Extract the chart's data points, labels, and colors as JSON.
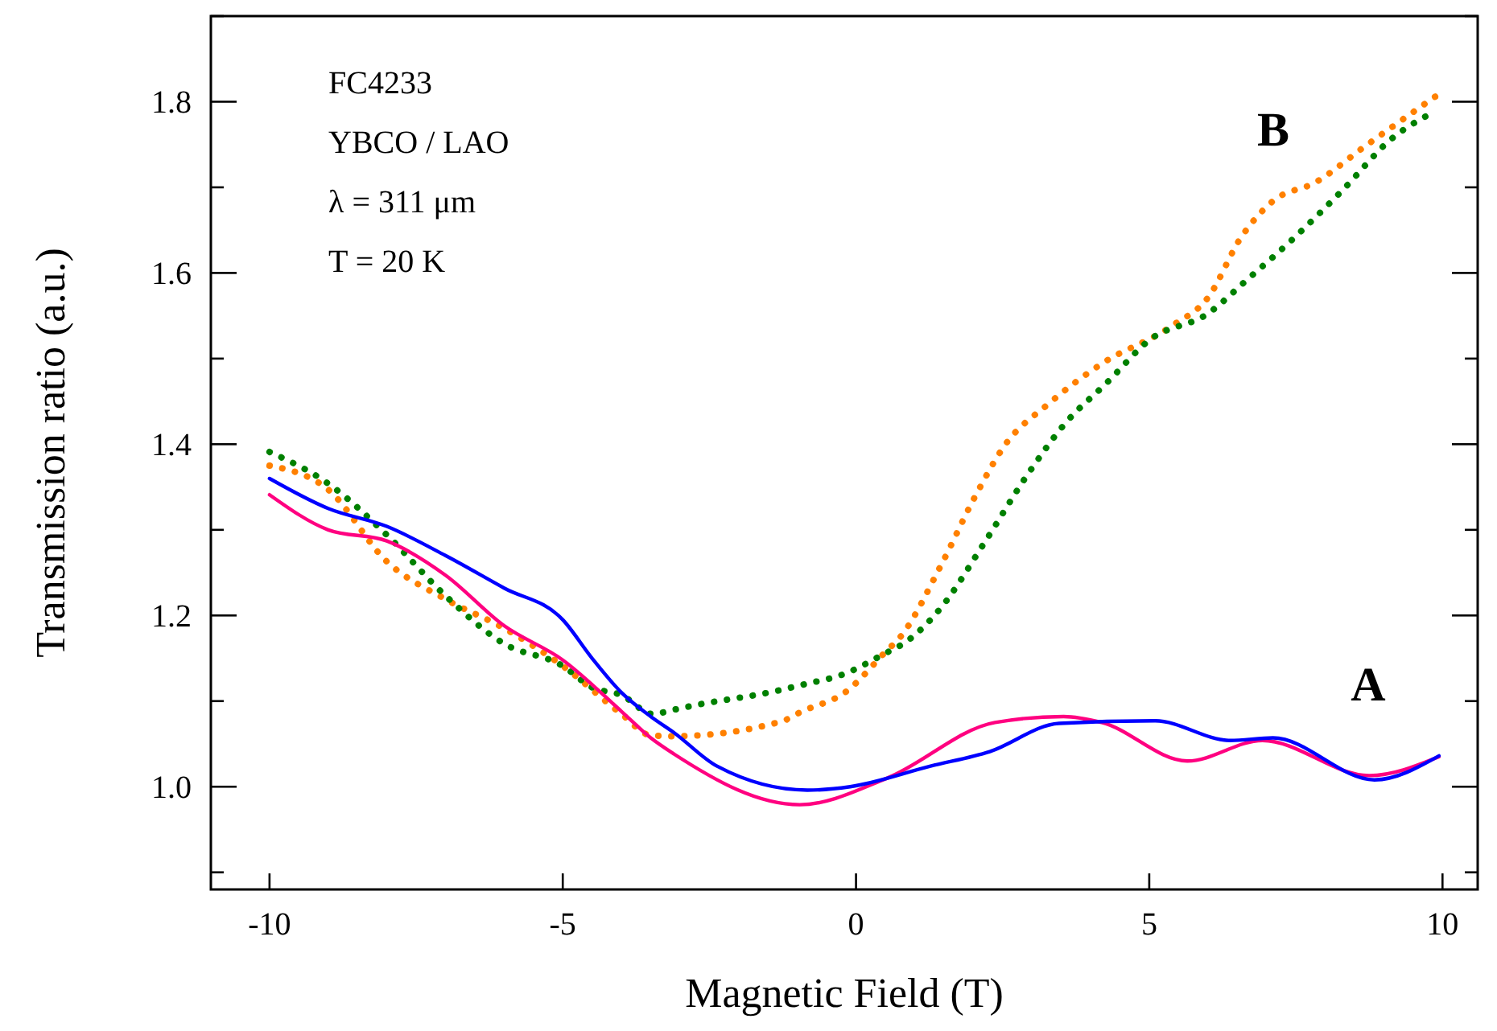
{
  "chart_data": {
    "type": "line",
    "xlabel": "Magnetic Field (T)",
    "ylabel": "Transmission ratio (a.u.)",
    "xlim": [
      -11,
      10.6
    ],
    "xticks": [
      -10,
      -5,
      0,
      5,
      10
    ],
    "ylim": [
      0.88,
      1.9
    ],
    "yticks": [
      {
        "value": 0.9,
        "label": null
      },
      {
        "value": 1.0,
        "label": "1.0"
      },
      {
        "value": 1.1,
        "label": null
      },
      {
        "value": 1.2,
        "label": "1.2"
      },
      {
        "value": 1.3,
        "label": null
      },
      {
        "value": 1.4,
        "label": "1.4"
      },
      {
        "value": 1.5,
        "label": null
      },
      {
        "value": 1.6,
        "label": "1.6"
      },
      {
        "value": 1.7,
        "label": null
      },
      {
        "value": 1.8,
        "label": "1.8"
      },
      {
        "value": 1.9,
        "label": null
      }
    ],
    "grid": false,
    "annotations": [
      "FC4233",
      "YBCO / LAO",
      "λ = 311 μm",
      "T = 20 K",
      "B",
      "A"
    ],
    "series": [
      {
        "color": "#ff8000",
        "line_style": "dotted",
        "x": [
          -10,
          -9,
          -8,
          -7,
          -6,
          -5,
          -4,
          -3.5,
          -3.1,
          -1.28,
          -0.92,
          -0.19,
          0.54,
          0.72,
          1.46,
          2.0,
          2.55,
          3.28,
          4.19,
          5.38,
          6.01,
          6.56,
          7.11,
          7.84,
          8.66,
          9.94
        ],
        "values": [
          1.375,
          1.347,
          1.263,
          1.219,
          1.185,
          1.141,
          1.085,
          1.06,
          1.059,
          1.076,
          1.088,
          1.11,
          1.16,
          1.172,
          1.26,
          1.335,
          1.4,
          1.447,
          1.494,
          1.538,
          1.572,
          1.641,
          1.684,
          1.706,
          1.747,
          1.809
        ]
      },
      {
        "color": "#008000",
        "line_style": "dotted",
        "x": [
          -10,
          -9,
          -8,
          -7,
          -6,
          -5,
          -4.5,
          -4,
          -3.47,
          -3.1,
          -2.83,
          -1.28,
          -0.92,
          -0.19,
          0.45,
          0.91,
          1.46,
          2.19,
          2.91,
          3.55,
          4.28,
          5.01,
          6.01,
          6.65,
          7.47,
          8.3,
          9.12,
          9.85
        ],
        "values": [
          1.391,
          1.354,
          1.294,
          1.223,
          1.167,
          1.141,
          1.116,
          1.107,
          1.085,
          1.09,
          1.094,
          1.113,
          1.119,
          1.132,
          1.154,
          1.172,
          1.21,
          1.285,
          1.363,
          1.423,
          1.472,
          1.522,
          1.553,
          1.591,
          1.641,
          1.697,
          1.756,
          1.788
        ]
      },
      {
        "color": "#ff0080",
        "line_style": "solid",
        "x": [
          -10,
          -9,
          -8,
          -7,
          -6,
          -5,
          -4,
          -3.5,
          -3.1,
          -0.96,
          0.53,
          2.37,
          3.54,
          4.19,
          5.65,
          6.93,
          8.75,
          9.94
        ],
        "values": [
          1.341,
          1.3,
          1.287,
          1.247,
          1.188,
          1.148,
          1.088,
          1.057,
          1.038,
          0.979,
          1.01,
          1.075,
          1.082,
          1.075,
          1.03,
          1.054,
          1.013,
          1.035
        ]
      },
      {
        "color": "#0000ff",
        "line_style": "solid",
        "x": [
          -10,
          -9,
          -8,
          -7,
          -6,
          -5,
          -4.5,
          -4,
          -3.5,
          -3.1,
          -2.37,
          -0.83,
          -0.1,
          1.27,
          2.28,
          3.46,
          5.1,
          6.38,
          7.11,
          8.84,
          9.94
        ],
        "values": [
          1.36,
          1.325,
          1.304,
          1.27,
          1.232,
          1.195,
          1.15,
          1.11,
          1.082,
          1.063,
          1.024,
          0.996,
          1.0,
          1.024,
          1.041,
          1.074,
          1.077,
          1.054,
          1.057,
          1.008,
          1.036
        ]
      }
    ]
  }
}
